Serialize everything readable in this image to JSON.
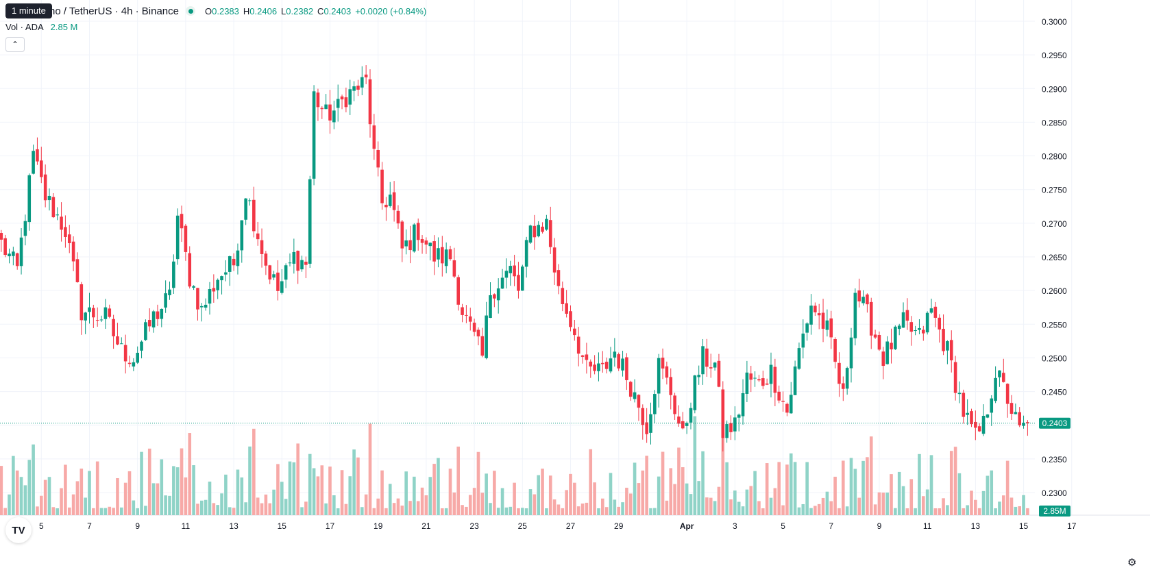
{
  "header": {
    "symbol_text": "no / TetherUS · 4h · Binance",
    "tooltip": "1 minute",
    "ohlc": [
      {
        "key": "O",
        "value": "0.2383"
      },
      {
        "key": "H",
        "value": "0.2406"
      },
      {
        "key": "L",
        "value": "0.2382"
      },
      {
        "key": "C",
        "value": "0.2403"
      },
      {
        "key": "",
        "value": "+0.0020 (+0.84%)"
      }
    ],
    "volume_label": "Vol · ADA",
    "volume_value": "2.85 M",
    "collapse_icon": "chevron-up-icon"
  },
  "chart_data": {
    "type": "candlestick",
    "y_axis": {
      "ticks": [
        "0.3000",
        "0.2950",
        "0.2900",
        "0.2850",
        "0.2800",
        "0.2750",
        "0.2700",
        "0.2650",
        "0.2600",
        "0.2550",
        "0.2500",
        "0.2450",
        "0.2400",
        "0.2350",
        "0.2300"
      ],
      "tick_values": [
        0.3,
        0.295,
        0.29,
        0.285,
        0.28,
        0.275,
        0.27,
        0.265,
        0.26,
        0.255,
        0.25,
        0.245,
        0.24,
        0.235,
        0.23
      ],
      "ylim": [
        0.226,
        0.3016
      ]
    },
    "x_axis": {
      "ticks": [
        "5",
        "7",
        "9",
        "11",
        "13",
        "15",
        "17",
        "19",
        "21",
        "23",
        "25",
        "27",
        "29",
        "Apr",
        "3",
        "5",
        "7",
        "9",
        "11",
        "13",
        "15",
        "17"
      ],
      "tick_candle_index": [
        10,
        22,
        34,
        46,
        58,
        70,
        82,
        94,
        106,
        118,
        130,
        142,
        154,
        171,
        183,
        195,
        207,
        219,
        231,
        243,
        255,
        267
      ],
      "bold_tick": "Apr"
    },
    "last_price_label": "0.2403",
    "last_volume_label": "2.85M",
    "colors": {
      "up": "#089981",
      "down": "#f23645",
      "vol_up": "#8fd3c7",
      "vol_down": "#f7a9a7",
      "grid": "#f0f3fa"
    },
    "waypoints": [
      [
        0,
        0.267
      ],
      [
        4,
        0.263
      ],
      [
        8,
        0.28
      ],
      [
        11,
        0.274
      ],
      [
        16,
        0.269
      ],
      [
        20,
        0.257
      ],
      [
        26,
        0.256
      ],
      [
        30,
        0.251
      ],
      [
        33,
        0.25
      ],
      [
        38,
        0.256
      ],
      [
        42,
        0.259
      ],
      [
        44,
        0.271
      ],
      [
        47,
        0.262
      ],
      [
        50,
        0.257
      ],
      [
        54,
        0.262
      ],
      [
        58,
        0.264
      ],
      [
        61,
        0.275
      ],
      [
        66,
        0.264
      ],
      [
        69,
        0.26
      ],
      [
        73,
        0.265
      ],
      [
        76,
        0.264
      ],
      [
        78,
        0.289
      ],
      [
        81,
        0.286
      ],
      [
        84,
        0.287
      ],
      [
        86,
        0.289
      ],
      [
        91,
        0.291
      ],
      [
        93,
        0.28
      ],
      [
        95,
        0.273
      ],
      [
        97,
        0.274
      ],
      [
        100,
        0.266
      ],
      [
        104,
        0.269
      ],
      [
        108,
        0.265
      ],
      [
        112,
        0.265
      ],
      [
        115,
        0.257
      ],
      [
        120,
        0.25
      ],
      [
        122,
        0.26
      ],
      [
        127,
        0.263
      ],
      [
        129,
        0.26
      ],
      [
        132,
        0.269
      ],
      [
        136,
        0.27
      ],
      [
        139,
        0.26
      ],
      [
        143,
        0.254
      ],
      [
        146,
        0.248
      ],
      [
        150,
        0.248
      ],
      [
        153,
        0.251
      ],
      [
        157,
        0.246
      ],
      [
        161,
        0.24
      ],
      [
        164,
        0.249
      ],
      [
        167,
        0.245
      ],
      [
        170,
        0.238
      ],
      [
        172,
        0.244
      ],
      [
        175,
        0.25
      ],
      [
        178,
        0.249
      ],
      [
        180,
        0.239
      ],
      [
        183,
        0.24
      ],
      [
        186,
        0.247
      ],
      [
        189,
        0.246
      ],
      [
        192,
        0.248
      ],
      [
        196,
        0.242
      ],
      [
        199,
        0.251
      ],
      [
        202,
        0.258
      ],
      [
        206,
        0.254
      ],
      [
        210,
        0.244
      ],
      [
        213,
        0.26
      ],
      [
        217,
        0.255
      ],
      [
        220,
        0.25
      ],
      [
        225,
        0.255
      ],
      [
        229,
        0.253
      ],
      [
        232,
        0.257
      ],
      [
        236,
        0.251
      ],
      [
        240,
        0.242
      ],
      [
        243,
        0.238
      ],
      [
        245,
        0.24
      ],
      [
        248,
        0.248
      ],
      [
        251,
        0.244
      ],
      [
        254,
        0.239
      ],
      [
        256,
        0.2403
      ]
    ],
    "candle_count": 257,
    "last_close": 0.2403
  },
  "footer": {
    "logo": "tradingview-logo-icon",
    "settings_icon": "gear-icon"
  }
}
